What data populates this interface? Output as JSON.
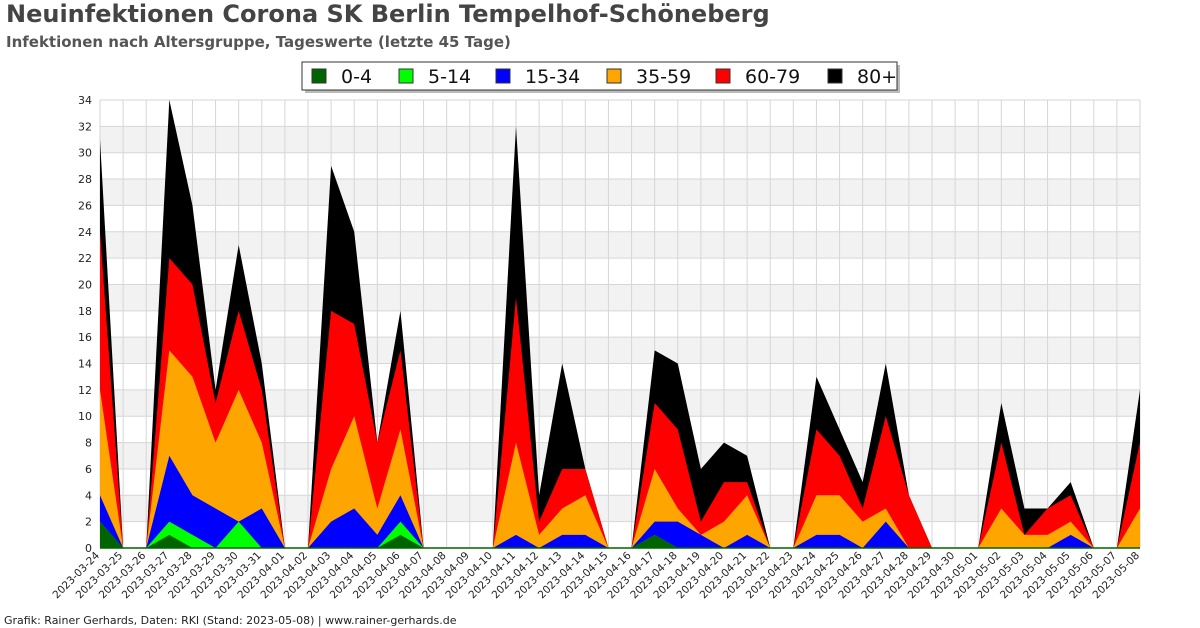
{
  "header": {
    "title": "Neuinfektionen Corona SK Berlin Tempelhof-Schöneberg",
    "subtitle": "Infektionen nach Altersgruppe, Tageswerte (letzte 45 Tage)"
  },
  "footer": {
    "credit": "Grafik: Rainer Gerhards, Daten: RKI (Stand: 2023-05-08) | www.rainer-gerhards.de"
  },
  "chart_data": {
    "type": "area",
    "stacked": true,
    "title": "Neuinfektionen Corona SK Berlin Tempelhof-Schöneberg",
    "subtitle": "Infektionen nach Altersgruppe, Tageswerte (letzte 45 Tage)",
    "xlabel": "",
    "ylabel": "",
    "ylim": [
      0,
      34
    ],
    "yticks": [
      0,
      2,
      4,
      6,
      8,
      10,
      12,
      14,
      16,
      18,
      20,
      22,
      24,
      26,
      28,
      30,
      32,
      34
    ],
    "grid": true,
    "legend_position": "top",
    "categories": [
      "2023-03-24",
      "2023-03-25",
      "2023-03-26",
      "2023-03-27",
      "2023-03-28",
      "2023-03-29",
      "2023-03-30",
      "2023-03-31",
      "2023-04-01",
      "2023-04-02",
      "2023-04-03",
      "2023-04-04",
      "2023-04-05",
      "2023-04-06",
      "2023-04-07",
      "2023-04-08",
      "2023-04-09",
      "2023-04-10",
      "2023-04-11",
      "2023-04-12",
      "2023-04-13",
      "2023-04-14",
      "2023-04-15",
      "2023-04-16",
      "2023-04-17",
      "2023-04-18",
      "2023-04-19",
      "2023-04-20",
      "2023-04-21",
      "2023-04-22",
      "2023-04-23",
      "2023-04-24",
      "2023-04-25",
      "2023-04-26",
      "2023-04-27",
      "2023-04-28",
      "2023-04-29",
      "2023-04-30",
      "2023-05-01",
      "2023-05-02",
      "2023-05-03",
      "2023-05-04",
      "2023-05-05",
      "2023-05-06",
      "2023-05-07",
      "2023-05-08"
    ],
    "series": [
      {
        "name": "0-4",
        "color": "#006400",
        "values": [
          2,
          0,
          0,
          1,
          0,
          0,
          0,
          0,
          0,
          0,
          0,
          0,
          0,
          1,
          0,
          0,
          0,
          0,
          0,
          0,
          0,
          0,
          0,
          0,
          1,
          0,
          0,
          0,
          0,
          0,
          0,
          0,
          0,
          0,
          0,
          0,
          0,
          0,
          0,
          0,
          0,
          0,
          0,
          0,
          0,
          0
        ]
      },
      {
        "name": "5-14",
        "color": "#00ff00",
        "values": [
          0,
          0,
          0,
          1,
          1,
          0,
          2,
          0,
          0,
          0,
          0,
          0,
          0,
          1,
          0,
          0,
          0,
          0,
          0,
          0,
          0,
          0,
          0,
          0,
          0,
          0,
          0,
          0,
          0,
          0,
          0,
          0,
          0,
          0,
          0,
          0,
          0,
          0,
          0,
          0,
          0,
          0,
          0,
          0,
          0,
          0
        ]
      },
      {
        "name": "15-34",
        "color": "#0000ff",
        "values": [
          2,
          0,
          0,
          5,
          3,
          3,
          0,
          3,
          0,
          0,
          2,
          3,
          1,
          2,
          0,
          0,
          0,
          0,
          1,
          0,
          1,
          1,
          0,
          0,
          1,
          2,
          1,
          0,
          1,
          0,
          0,
          1,
          1,
          0,
          2,
          0,
          0,
          0,
          0,
          0,
          0,
          0,
          1,
          0,
          0,
          0
        ]
      },
      {
        "name": "35-59",
        "color": "#ffa500",
        "values": [
          8,
          0,
          0,
          8,
          9,
          5,
          10,
          5,
          0,
          0,
          4,
          7,
          2,
          5,
          0,
          0,
          0,
          0,
          7,
          1,
          2,
          3,
          0,
          0,
          4,
          1,
          0,
          2,
          3,
          0,
          0,
          3,
          3,
          2,
          1,
          0,
          0,
          0,
          0,
          3,
          1,
          1,
          1,
          0,
          0,
          3
        ]
      },
      {
        "name": "60-79",
        "color": "#ff0000",
        "values": [
          12,
          0,
          0,
          7,
          7,
          3,
          6,
          4,
          0,
          0,
          12,
          7,
          5,
          6,
          0,
          0,
          0,
          0,
          11,
          1,
          3,
          2,
          0,
          0,
          5,
          6,
          1,
          3,
          1,
          0,
          0,
          5,
          3,
          1,
          7,
          4,
          0,
          0,
          0,
          5,
          0,
          2,
          2,
          0,
          0,
          5
        ]
      },
      {
        "name": "80+",
        "color": "#000000",
        "values": [
          7,
          0,
          0,
          12,
          6,
          1,
          5,
          2,
          0,
          0,
          11,
          7,
          0,
          3,
          0,
          0,
          0,
          0,
          13,
          2,
          8,
          0,
          0,
          0,
          4,
          5,
          4,
          3,
          2,
          0,
          0,
          4,
          2,
          2,
          4,
          0,
          0,
          0,
          0,
          3,
          2,
          0,
          1,
          0,
          0,
          4
        ]
      }
    ]
  }
}
